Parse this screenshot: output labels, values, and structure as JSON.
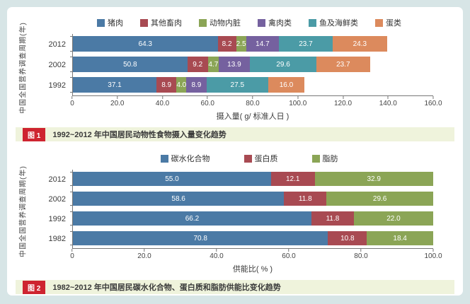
{
  "page": {
    "background": "#d7e5e6",
    "panel_background": "#ffffff"
  },
  "chart_data": [
    {
      "type": "bar",
      "orientation": "horizontal",
      "stacked": true,
      "legend_position": "top",
      "grid": false,
      "ylabel": "中国全国营养调查周期(年)",
      "xlabel": "摄入量( g/ 标准人日 )",
      "xlim": [
        0,
        160
      ],
      "xticks": [
        "0",
        "20.0",
        "40.0",
        "60.0",
        "80.0",
        "100.0",
        "120.0",
        "140.0",
        "160.0"
      ],
      "categories": [
        "2012",
        "2002",
        "1992"
      ],
      "series": [
        {
          "name": "猪肉",
          "color": "#4b7aa5",
          "values": [
            64.3,
            50.8,
            37.1
          ]
        },
        {
          "name": "其他畜肉",
          "color": "#a84a52",
          "values": [
            8.2,
            9.2,
            8.9
          ]
        },
        {
          "name": "动物内脏",
          "color": "#8ba556",
          "values": [
            2.5,
            4.7,
            4.0
          ]
        },
        {
          "name": "禽肉类",
          "color": "#75619f",
          "values": [
            14.7,
            13.9,
            8.9
          ]
        },
        {
          "name": "鱼及海鲜类",
          "color": "#4b9ba6",
          "values": [
            23.7,
            29.6,
            27.5
          ]
        },
        {
          "name": "蛋类",
          "color": "#dc8a5d",
          "values": [
            24.3,
            23.7,
            16.0
          ]
        }
      ],
      "caption": {
        "badge": "图 1",
        "text": "1992~2012 年中国居民动物性食物摄入量变化趋势",
        "badge_color": "#ce2430",
        "strip_color": "#eff3dc"
      }
    },
    {
      "type": "bar",
      "orientation": "horizontal",
      "stacked": true,
      "legend_position": "top",
      "grid": false,
      "ylabel": "中国全国营养调查周期(年)",
      "xlabel": "供能比( % )",
      "xlim": [
        0,
        100
      ],
      "xticks": [
        "0",
        "20.0",
        "40.0",
        "60.0",
        "80.0",
        "100.0"
      ],
      "categories": [
        "2012",
        "2002",
        "1992",
        "1982"
      ],
      "series": [
        {
          "name": "碳水化合物",
          "color": "#4b7aa5",
          "values": [
            55.0,
            58.6,
            66.2,
            70.8
          ]
        },
        {
          "name": "蛋白质",
          "color": "#a84a52",
          "values": [
            12.1,
            11.8,
            11.8,
            10.8
          ]
        },
        {
          "name": "脂肪",
          "color": "#8ba556",
          "values": [
            32.9,
            29.6,
            22.0,
            18.4
          ]
        }
      ],
      "caption": {
        "badge": "图 2",
        "text": "1982~2012 年中国居民碳水化合物、蛋白质和脂肪供能比变化趋势",
        "badge_color": "#ce2430",
        "strip_color": "#eff3dc"
      }
    }
  ]
}
